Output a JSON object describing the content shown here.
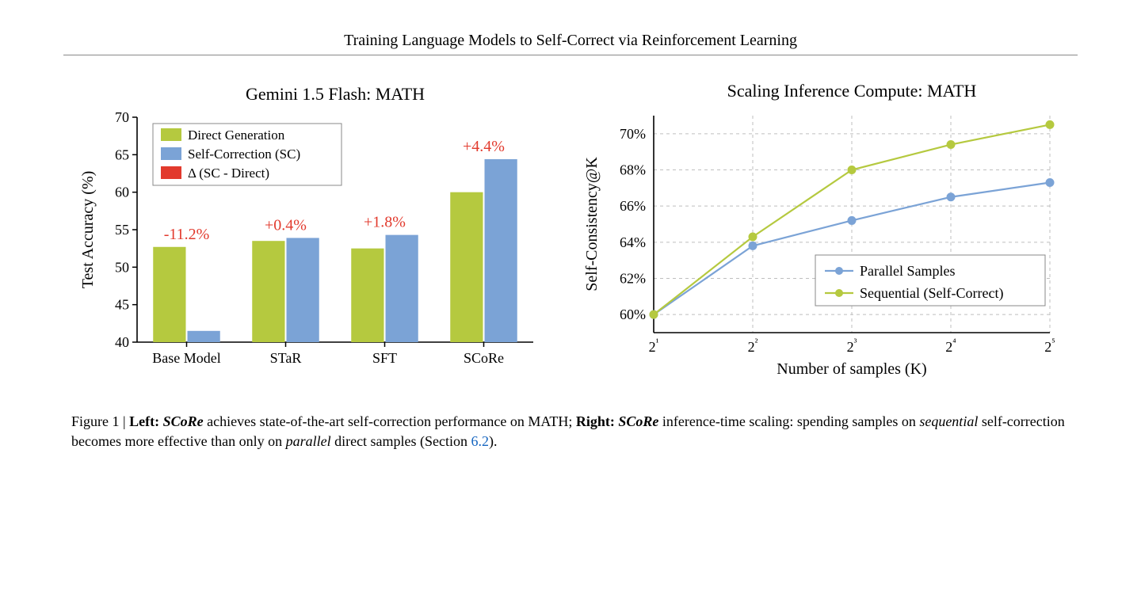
{
  "paper_title": "Training Language Models to Self-Correct via Reinforcement Learning",
  "left_chart": {
    "type": "grouped-bar",
    "title": "Gemini 1.5 Flash: MATH",
    "title_fontsize": 22,
    "ylabel": "Test Accuracy (%)",
    "label_fontsize": 20,
    "tick_fontsize": 18,
    "categories": [
      "Base Model",
      "STaR",
      "SFT",
      "SCoRe"
    ],
    "series": [
      {
        "name": "Direct Generation",
        "color": "#b5c93f",
        "values": [
          52.7,
          53.5,
          52.5,
          60.0
        ]
      },
      {
        "name": "Self-Correction (SC)",
        "color": "#7ba3d6",
        "values": [
          41.5,
          53.9,
          54.3,
          64.4
        ]
      },
      {
        "name": "Δ (SC - Direct)",
        "color": "#e23a2d",
        "values": null
      }
    ],
    "delta_labels": [
      "-11.2%",
      "+0.4%",
      "+1.8%",
      "+4.4%"
    ],
    "delta_label_color": "#e23a2d",
    "delta_label_fontsize": 20,
    "ylim": [
      40,
      70
    ],
    "ytick_step": 5,
    "bar_group_width": 0.7,
    "bar_width": 0.33,
    "axis_color": "#000000",
    "legend_border": "#888888",
    "background": "#ffffff"
  },
  "right_chart": {
    "type": "line",
    "title": "Scaling Inference Compute: MATH",
    "title_fontsize": 22,
    "ylabel": "Self-Consistency@K",
    "xlabel": "Number of samples (K)",
    "label_fontsize": 20,
    "tick_fontsize": 18,
    "x_ticks": [
      "2¹",
      "2²",
      "2³",
      "2⁴",
      "2⁵"
    ],
    "y_ticks": [
      "60%",
      "62%",
      "64%",
      "66%",
      "68%",
      "70%"
    ],
    "ylim": [
      59,
      71
    ],
    "series": [
      {
        "name": "Parallel Samples",
        "color": "#7ba3d6",
        "marker": "circle",
        "x": [
          1,
          2,
          3,
          4,
          5
        ],
        "y": [
          60.0,
          63.8,
          65.2,
          66.5,
          67.3
        ]
      },
      {
        "name": "Sequential (Self-Correct)",
        "color": "#b5c93f",
        "marker": "circle",
        "x": [
          1,
          2,
          3,
          4,
          5
        ],
        "y": [
          60.0,
          64.3,
          68.0,
          69.4,
          70.5
        ]
      }
    ],
    "line_width": 2.2,
    "marker_size": 5,
    "grid_color": "#bfbfbf",
    "axis_color": "#000000",
    "legend_border": "#888888",
    "background": "#ffffff"
  },
  "caption": {
    "figlabel": "Figure 1",
    "left_bold": "Left:",
    "left_text_1": "SCoRe",
    "left_text_2": " achieves state-of-the-art self-correction performance on MATH; ",
    "right_bold": "Right:",
    "right_text_1": "SCoRe",
    "right_text_2": " inference-time scaling: spending samples on ",
    "seq_word": "sequential",
    "right_text_3": " self-correction becomes more effective than only on ",
    "par_word": "parallel",
    "right_text_4": " direct samples (Section ",
    "section_ref": "6.2",
    "right_text_5": ")."
  }
}
